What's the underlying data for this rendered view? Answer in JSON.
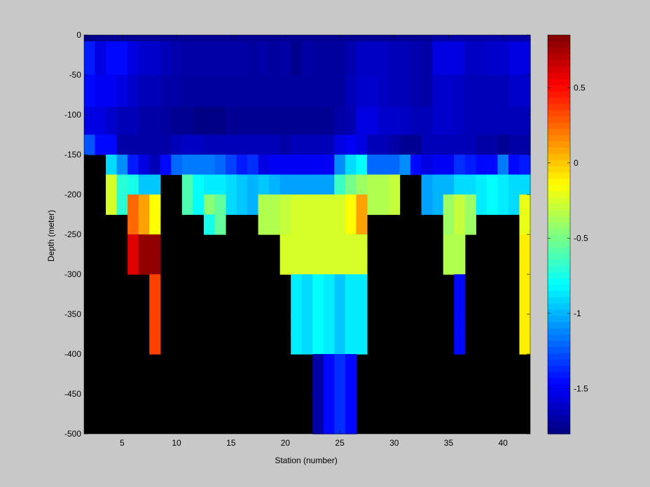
{
  "chart_data": {
    "type": "heatmap",
    "title": "",
    "xlabel": "Station (number)",
    "ylabel": "Depth (meter)",
    "xlim": [
      1.5,
      42.5
    ],
    "ylim": [
      -500,
      0
    ],
    "xticks": [
      5,
      10,
      15,
      20,
      25,
      30,
      35,
      40
    ],
    "xtick_labels": [
      "5",
      "10",
      "15",
      "20",
      "25",
      "30",
      "35",
      "40"
    ],
    "yticks": [
      0,
      -50,
      -100,
      -150,
      -200,
      -250,
      -300,
      -350,
      -400,
      -450,
      -500
    ],
    "ytick_labels": [
      "0",
      "-50",
      "-100",
      "-150",
      "-200",
      "-250",
      "-300",
      "-350",
      "-400",
      "-450",
      "-500"
    ],
    "nan_color": "#000000",
    "colormap": "jet",
    "clim": [
      -1.8,
      0.85
    ],
    "colorbar_ticks": [
      0.5,
      0,
      -0.5,
      -1,
      -1.5
    ],
    "colorbar_tick_labels": [
      "0.5",
      "0",
      "-0.5",
      "-1",
      "-1.5"
    ],
    "stations": [
      2,
      3,
      4,
      5,
      6,
      7,
      8,
      9,
      10,
      11,
      12,
      13,
      14,
      15,
      16,
      17,
      18,
      19,
      20,
      21,
      22,
      23,
      24,
      25,
      26,
      27,
      28,
      29,
      30,
      31,
      32,
      33,
      34,
      35,
      36,
      37,
      38,
      39,
      40,
      41,
      42
    ],
    "depth_bins": [
      [
        0,
        -25
      ],
      [
        -25,
        -75
      ],
      [
        -75,
        -125
      ],
      [
        -125,
        -175
      ],
      [
        -175,
        -225
      ],
      [
        -225,
        -275
      ],
      [
        -275,
        -325
      ],
      [
        -325,
        -375
      ],
      [
        -375,
        -425
      ],
      [
        -425,
        -475
      ],
      [
        -475,
        -500
      ]
    ],
    "values": [
      [
        -1.78,
        -1.75,
        -1.75,
        -1.75,
        -1.75,
        -1.75,
        -1.75,
        -1.75,
        -1.75,
        -1.75,
        -1.75,
        -1.75,
        -1.75,
        -1.75,
        -1.75,
        -1.75,
        -1.75,
        -1.75,
        -1.75,
        -1.75,
        -1.75,
        -1.75,
        -1.75,
        -1.75,
        -1.75,
        -1.75,
        -1.75,
        -1.75,
        -1.75,
        -1.75,
        -1.75,
        -1.75,
        -1.7,
        -1.7,
        -1.7,
        -1.7,
        -1.7,
        -1.7,
        -1.7,
        -1.7,
        -1.7
      ],
      [
        -1.4,
        -1.55,
        -1.45,
        -1.45,
        -1.55,
        -1.6,
        -1.6,
        -1.65,
        -1.68,
        -1.7,
        -1.7,
        -1.7,
        -1.7,
        -1.7,
        -1.7,
        -1.72,
        -1.7,
        -1.72,
        -1.7,
        -1.76,
        -1.7,
        -1.72,
        -1.72,
        -1.72,
        -1.68,
        -1.62,
        -1.62,
        -1.62,
        -1.65,
        -1.65,
        -1.68,
        -1.7,
        -1.55,
        -1.55,
        -1.55,
        -1.62,
        -1.62,
        -1.6,
        -1.6,
        -1.55,
        -1.55
      ],
      [
        -1.45,
        -1.5,
        -1.5,
        -1.55,
        -1.6,
        -1.65,
        -1.65,
        -1.7,
        -1.7,
        -1.72,
        -1.72,
        -1.72,
        -1.72,
        -1.72,
        -1.72,
        -1.72,
        -1.72,
        -1.72,
        -1.72,
        -1.72,
        -1.72,
        -1.72,
        -1.72,
        -1.72,
        -1.65,
        -1.6,
        -1.6,
        -1.62,
        -1.65,
        -1.65,
        -1.68,
        -1.7,
        -1.6,
        -1.6,
        -1.62,
        -1.65,
        -1.65,
        -1.65,
        -1.65,
        -1.6,
        -1.6
      ],
      [
        -1.55,
        -1.55,
        -1.6,
        -1.65,
        -1.65,
        -1.7,
        -1.7,
        -1.72,
        -1.75,
        -1.75,
        -1.78,
        -1.78,
        -1.78,
        -1.75,
        -1.75,
        -1.75,
        -1.75,
        -1.75,
        -1.75,
        -1.75,
        -1.75,
        -1.75,
        -1.75,
        -1.7,
        -1.68,
        -1.55,
        -1.55,
        -1.6,
        -1.6,
        -1.62,
        -1.65,
        -1.65,
        -1.6,
        -1.6,
        -1.62,
        -1.65,
        -1.65,
        -1.65,
        -1.65,
        -1.65,
        -1.65
      ],
      [
        -1.25,
        -1.45,
        -1.45,
        -1.7,
        -1.7,
        -1.7,
        -1.7,
        -1.7,
        -1.65,
        -1.62,
        -1.62,
        -1.65,
        -1.65,
        -1.65,
        -1.65,
        -1.65,
        -1.65,
        -1.65,
        -1.7,
        -1.65,
        -1.65,
        -1.65,
        -1.65,
        -1.55,
        -1.5,
        -1.55,
        -1.65,
        -1.65,
        -1.7,
        -1.75,
        -1.75,
        -1.65,
        -1.65,
        -1.65,
        -1.65,
        -1.65,
        -1.7,
        -1.7,
        -1.75,
        -1.7,
        -1.7
      ],
      [
        null,
        null,
        -0.9,
        -1.1,
        -1.4,
        -1.55,
        -1.65,
        -1.45,
        -1.2,
        -1.15,
        -1.15,
        -1.15,
        -1.2,
        -1.3,
        -1.4,
        -1.35,
        -1.55,
        -1.5,
        -1.5,
        -1.5,
        -1.5,
        -1.5,
        -1.5,
        -1.1,
        -0.9,
        -0.8,
        -1.2,
        -1.2,
        -1.2,
        -1.1,
        -1.45,
        -1.55,
        -1.5,
        -1.5,
        -1.35,
        -1.4,
        -1.45,
        -1.45,
        -1.15,
        -1.45,
        -1.4
      ],
      [
        null,
        null,
        -0.25,
        -0.7,
        -0.75,
        -0.95,
        -0.95,
        null,
        null,
        -0.6,
        -0.8,
        -0.85,
        -0.85,
        -0.9,
        -0.95,
        -1.0,
        -0.95,
        -1.0,
        -1.05,
        -1.05,
        -1.05,
        -1.05,
        -1.05,
        -0.65,
        -0.5,
        -0.4,
        -0.35,
        -0.35,
        -0.3,
        null,
        null,
        -1.05,
        -1.0,
        -1.0,
        -0.9,
        -0.9,
        -0.85,
        -0.8,
        -0.85,
        -0.9,
        -0.9
      ],
      [
        null,
        null,
        -0.25,
        -0.7,
        -0.75,
        -0.95,
        -0.95,
        null,
        null,
        -0.6,
        -0.8,
        -0.85,
        -0.85,
        -0.9,
        -0.95,
        -1.0,
        -0.95,
        -1.0,
        -1.05,
        -1.05,
        -1.05,
        -1.05,
        -1.05,
        -0.65,
        -0.5,
        -0.4,
        -0.35,
        -0.35,
        -0.3,
        null,
        null,
        -1.05,
        -1.0,
        -1.0,
        -0.9,
        -0.9,
        -0.85,
        -0.8,
        -0.85,
        -0.9,
        -0.9
      ],
      [
        null,
        null,
        null,
        null,
        0.25,
        0.1,
        -0.15,
        null,
        null,
        null,
        null,
        -0.45,
        -0.55,
        null,
        null,
        null,
        -0.35,
        -0.35,
        -0.3,
        -0.25,
        -0.25,
        -0.25,
        -0.25,
        -0.25,
        -0.15,
        0.1,
        null,
        null,
        null,
        null,
        null,
        null,
        null,
        -0.4,
        -0.3,
        -0.4,
        null,
        null,
        null,
        null,
        -0.2
      ],
      [
        null,
        null,
        null,
        null,
        0.25,
        0.1,
        -0.15,
        null,
        null,
        null,
        null,
        -0.75,
        -0.55,
        null,
        null,
        null,
        -0.35,
        -0.35,
        -0.3,
        -0.25,
        -0.25,
        -0.25,
        -0.25,
        -0.25,
        -0.15,
        0.1,
        null,
        null,
        null,
        null,
        null,
        null,
        null,
        -0.4,
        -0.3,
        -0.4,
        null,
        null,
        null,
        null,
        -0.2
      ],
      [
        null,
        null,
        null,
        null,
        0.6,
        0.8,
        0.8,
        null,
        null,
        null,
        null,
        null,
        null,
        null,
        null,
        null,
        null,
        null,
        -0.25,
        -0.25,
        -0.25,
        -0.25,
        -0.25,
        -0.25,
        -0.25,
        -0.25,
        null,
        null,
        null,
        null,
        null,
        null,
        null,
        -0.35,
        -0.35,
        null,
        null,
        null,
        null,
        null,
        -0.1
      ],
      [
        null,
        null,
        null,
        null,
        0.6,
        0.8,
        0.8,
        null,
        null,
        null,
        null,
        null,
        null,
        null,
        null,
        null,
        null,
        null,
        -0.25,
        -0.25,
        -0.25,
        -0.25,
        -0.25,
        -0.25,
        -0.25,
        -0.25,
        null,
        null,
        null,
        null,
        null,
        null,
        null,
        -0.35,
        -0.35,
        null,
        null,
        null,
        null,
        null,
        -0.1
      ],
      [
        null,
        null,
        null,
        null,
        null,
        null,
        0.35,
        null,
        null,
        null,
        null,
        null,
        null,
        null,
        null,
        null,
        null,
        null,
        null,
        -0.85,
        -0.9,
        -0.8,
        -0.85,
        -0.95,
        -0.85,
        -0.85,
        null,
        null,
        null,
        null,
        null,
        null,
        null,
        null,
        -1.45,
        null,
        null,
        null,
        null,
        null,
        -0.1
      ],
      [
        null,
        null,
        null,
        null,
        null,
        null,
        0.35,
        null,
        null,
        null,
        null,
        null,
        null,
        null,
        null,
        null,
        null,
        null,
        null,
        -0.85,
        -0.9,
        -0.8,
        -0.85,
        -0.95,
        -0.85,
        -0.85,
        null,
        null,
        null,
        null,
        null,
        null,
        null,
        null,
        -1.45,
        null,
        null,
        null,
        null,
        null,
        -0.1
      ],
      [
        null,
        null,
        null,
        null,
        null,
        null,
        0.35,
        null,
        null,
        null,
        null,
        null,
        null,
        null,
        null,
        null,
        null,
        null,
        null,
        -0.85,
        -0.9,
        -0.8,
        -0.85,
        -0.95,
        -0.85,
        -0.85,
        null,
        null,
        null,
        null,
        null,
        null,
        null,
        null,
        -1.45,
        null,
        null,
        null,
        null,
        null,
        -0.1
      ],
      [
        null,
        null,
        null,
        null,
        null,
        null,
        null,
        null,
        null,
        null,
        null,
        null,
        null,
        null,
        null,
        null,
        null,
        null,
        null,
        null,
        null,
        -1.7,
        -1.45,
        -1.35,
        -1.45,
        null,
        null,
        null,
        null,
        null,
        null,
        null,
        null,
        null,
        null,
        null,
        null,
        null,
        null,
        null,
        null
      ],
      [
        null,
        null,
        null,
        null,
        null,
        null,
        null,
        null,
        null,
        null,
        null,
        null,
        null,
        null,
        null,
        null,
        null,
        null,
        null,
        null,
        null,
        -1.7,
        -1.45,
        -1.35,
        -1.45,
        null,
        null,
        null,
        null,
        null,
        null,
        null,
        null,
        null,
        null,
        null,
        null,
        null,
        null,
        null,
        null
      ],
      [
        null,
        null,
        null,
        null,
        null,
        null,
        null,
        null,
        null,
        null,
        null,
        null,
        null,
        null,
        null,
        null,
        null,
        null,
        null,
        null,
        null,
        -1.7,
        -1.45,
        -1.35,
        -1.45,
        null,
        null,
        null,
        null,
        null,
        null,
        null,
        null,
        null,
        null,
        null,
        null,
        null,
        null,
        null,
        null
      ]
    ],
    "row_depths_top": [
      0,
      -8,
      -50,
      -90,
      -125,
      -150,
      -175,
      -200,
      -200,
      -225,
      -250,
      -275,
      -300,
      -350,
      -375,
      -400,
      -450,
      -475
    ],
    "row_depths_bottom": [
      -8,
      -50,
      -90,
      -125,
      -150,
      -175,
      -200,
      -225,
      -225,
      -250,
      -275,
      -300,
      -350,
      -375,
      -400,
      -450,
      -475,
      -500
    ]
  }
}
